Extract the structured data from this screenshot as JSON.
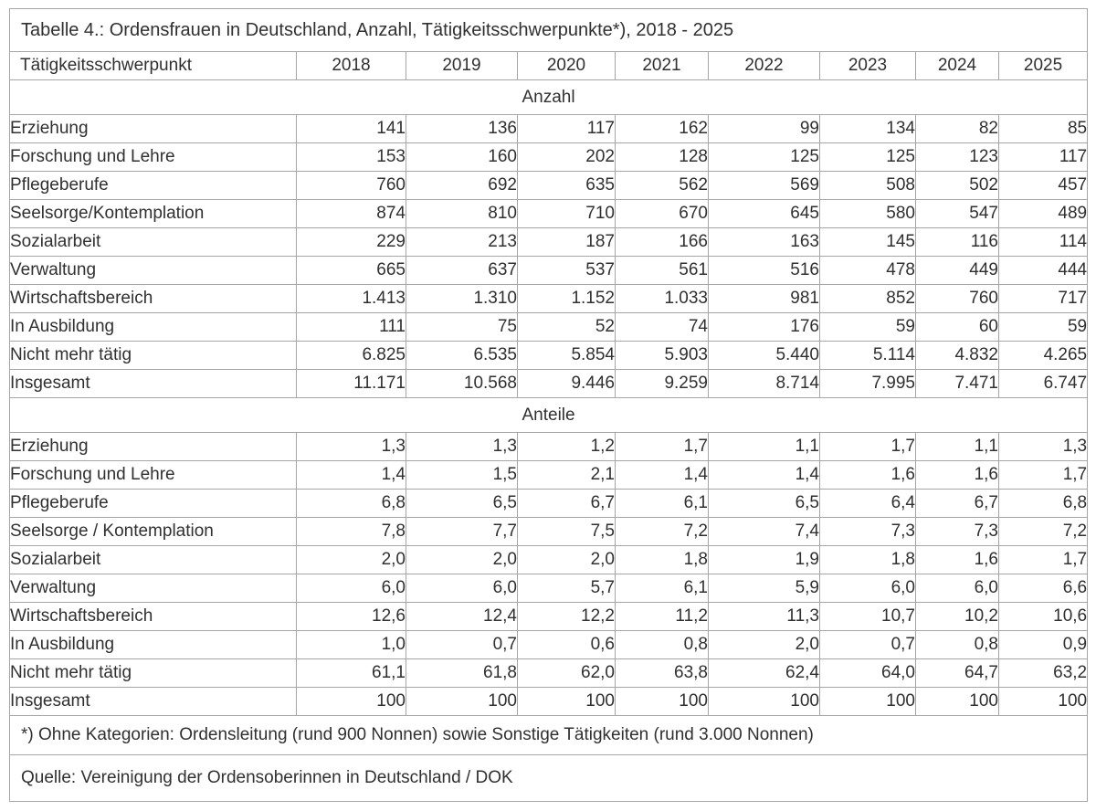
{
  "table": {
    "title": "Tabelle 4.: Ordensfrauen in Deutschland, Anzahl, Tätigkeitsschwerpunkte*), 2018 - 2025",
    "header": {
      "label": "Tätigkeitsschwerpunkt",
      "years": [
        "2018",
        "2019",
        "2020",
        "2021",
        "2022",
        "2023",
        "2024",
        "2025"
      ]
    },
    "sections": [
      {
        "name": "Anzahl",
        "rows": [
          {
            "label": "Erziehung",
            "values": [
              "141",
              "136",
              "117",
              "162",
              "99",
              "134",
              "82",
              "85"
            ]
          },
          {
            "label": "Forschung und Lehre",
            "values": [
              "153",
              "160",
              "202",
              "128",
              "125",
              "125",
              "123",
              "117"
            ]
          },
          {
            "label": "Pflegeberufe",
            "values": [
              "760",
              "692",
              "635",
              "562",
              "569",
              "508",
              "502",
              "457"
            ]
          },
          {
            "label": "Seelsorge/Kontemplation",
            "values": [
              "874",
              "810",
              "710",
              "670",
              "645",
              "580",
              "547",
              "489"
            ]
          },
          {
            "label": "Sozialarbeit",
            "values": [
              "229",
              "213",
              "187",
              "166",
              "163",
              "145",
              "116",
              "114"
            ]
          },
          {
            "label": "Verwaltung",
            "values": [
              "665",
              "637",
              "537",
              "561",
              "516",
              "478",
              "449",
              "444"
            ]
          },
          {
            "label": "Wirtschaftsbereich",
            "values": [
              "1.413",
              "1.310",
              "1.152",
              "1.033",
              "981",
              "852",
              "760",
              "717"
            ]
          },
          {
            "label": "In Ausbildung",
            "values": [
              "111",
              "75",
              "52",
              "74",
              "176",
              "59",
              "60",
              "59"
            ]
          },
          {
            "label": "Nicht mehr tätig",
            "values": [
              "6.825",
              "6.535",
              "5.854",
              "5.903",
              "5.440",
              "5.114",
              "4.832",
              "4.265"
            ]
          },
          {
            "label": "Insgesamt",
            "values": [
              "11.171",
              "10.568",
              "9.446",
              "9.259",
              "8.714",
              "7.995",
              "7.471",
              "6.747"
            ]
          }
        ]
      },
      {
        "name": "Anteile",
        "rows": [
          {
            "label": "Erziehung",
            "values": [
              "1,3",
              "1,3",
              "1,2",
              "1,7",
              "1,1",
              "1,7",
              "1,1",
              "1,3"
            ]
          },
          {
            "label": "Forschung und Lehre",
            "values": [
              "1,4",
              "1,5",
              "2,1",
              "1,4",
              "1,4",
              "1,6",
              "1,6",
              "1,7"
            ]
          },
          {
            "label": "Pflegeberufe",
            "values": [
              "6,8",
              "6,5",
              "6,7",
              "6,1",
              "6,5",
              "6,4",
              "6,7",
              "6,8"
            ]
          },
          {
            "label": "Seelsorge / Kontemplation",
            "values": [
              "7,8",
              "7,7",
              "7,5",
              "7,2",
              "7,4",
              "7,3",
              "7,3",
              "7,2"
            ]
          },
          {
            "label": "Sozialarbeit",
            "values": [
              "2,0",
              "2,0",
              "2,0",
              "1,8",
              "1,9",
              "1,8",
              "1,6",
              "1,7"
            ]
          },
          {
            "label": "Verwaltung",
            "values": [
              "6,0",
              "6,0",
              "5,7",
              "6,1",
              "5,9",
              "6,0",
              "6,0",
              "6,6"
            ]
          },
          {
            "label": "Wirtschaftsbereich",
            "values": [
              "12,6",
              "12,4",
              "12,2",
              "11,2",
              "11,3",
              "10,7",
              "10,2",
              "10,6"
            ]
          },
          {
            "label": "In Ausbildung",
            "values": [
              "1,0",
              "0,7",
              "0,6",
              "0,8",
              "2,0",
              "0,7",
              "0,8",
              "0,9"
            ]
          },
          {
            "label": "Nicht mehr tätig",
            "values": [
              "61,1",
              "61,8",
              "62,0",
              "63,8",
              "62,4",
              "64,0",
              "64,7",
              "63,2"
            ]
          },
          {
            "label": "Insgesamt",
            "values": [
              "100",
              "100",
              "100",
              "100",
              "100",
              "100",
              "100",
              "100"
            ]
          }
        ]
      }
    ],
    "footnote": "*) Ohne Kategorien: Ordensleitung (rund 900 Nonnen) sowie Sonstige Tätigkeiten (rund 3.000 Nonnen)",
    "source": "Quelle: Vereinigung der Ordensoberinnen in Deutschland / DOK",
    "colors": {
      "border": "#a6a6a6",
      "border_light": "#c6c6c6",
      "text": "#303030",
      "background": "#ffffff"
    }
  }
}
